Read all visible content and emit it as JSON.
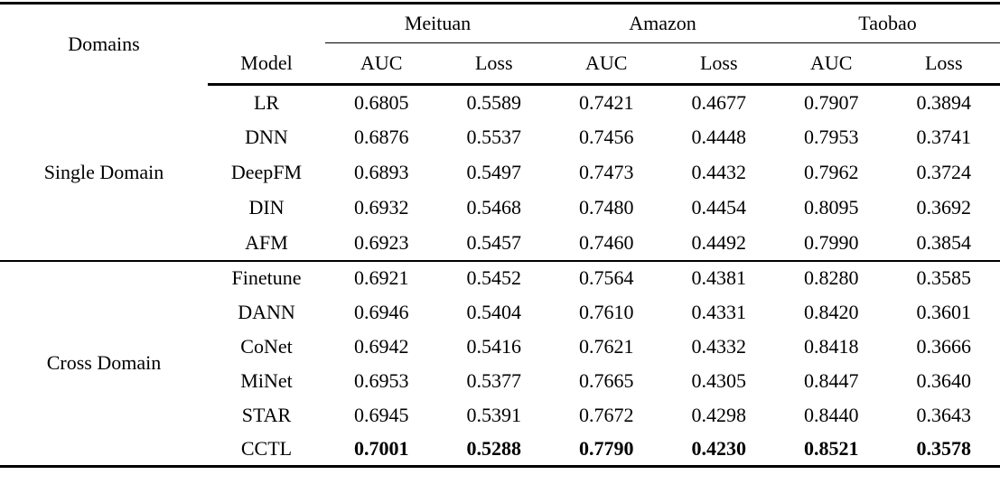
{
  "table": {
    "header": {
      "domains": "Domains",
      "model": "Model",
      "groups": [
        "Meituan",
        "Amazon",
        "Taobao"
      ],
      "metrics": [
        "AUC",
        "Loss",
        "AUC",
        "Loss",
        "AUC",
        "Loss"
      ]
    },
    "sections": [
      {
        "domain": "Single Domain",
        "rows": [
          {
            "model": "LR",
            "values": [
              "0.6805",
              "0.5589",
              "0.7421",
              "0.4677",
              "0.7907",
              "0.3894"
            ]
          },
          {
            "model": "DNN",
            "values": [
              "0.6876",
              "0.5537",
              "0.7456",
              "0.4448",
              "0.7953",
              "0.3741"
            ]
          },
          {
            "model": "DeepFM",
            "values": [
              "0.6893",
              "0.5497",
              "0.7473",
              "0.4432",
              "0.7962",
              "0.3724"
            ]
          },
          {
            "model": "DIN",
            "values": [
              "0.6932",
              "0.5468",
              "0.7480",
              "0.4454",
              "0.8095",
              "0.3692"
            ]
          },
          {
            "model": "AFM",
            "values": [
              "0.6923",
              "0.5457",
              "0.7460",
              "0.4492",
              "0.7990",
              "0.3854"
            ]
          }
        ]
      },
      {
        "domain": "Cross Domain",
        "rows": [
          {
            "model": "Finetune",
            "values": [
              "0.6921",
              "0.5452",
              "0.7564",
              "0.4381",
              "0.8280",
              "0.3585"
            ]
          },
          {
            "model": "DANN",
            "values": [
              "0.6946",
              "0.5404",
              "0.7610",
              "0.4331",
              "0.8420",
              "0.3601"
            ]
          },
          {
            "model": "CoNet",
            "values": [
              "0.6942",
              "0.5416",
              "0.7621",
              "0.4332",
              "0.8418",
              "0.3666"
            ]
          },
          {
            "model": "MiNet",
            "values": [
              "0.6953",
              "0.5377",
              "0.7665",
              "0.4305",
              "0.8447",
              "0.3640"
            ]
          },
          {
            "model": "STAR",
            "values": [
              "0.6945",
              "0.5391",
              "0.7672",
              "0.4298",
              "0.8440",
              "0.3643"
            ]
          },
          {
            "model": "CCTL",
            "values": [
              "0.7001",
              "0.5288",
              "0.7790",
              "0.4230",
              "0.8521",
              "0.3578"
            ],
            "bold": true
          }
        ]
      }
    ]
  },
  "colors": {
    "background": "#ffffff",
    "text": "#000000",
    "rule": "#000000"
  }
}
